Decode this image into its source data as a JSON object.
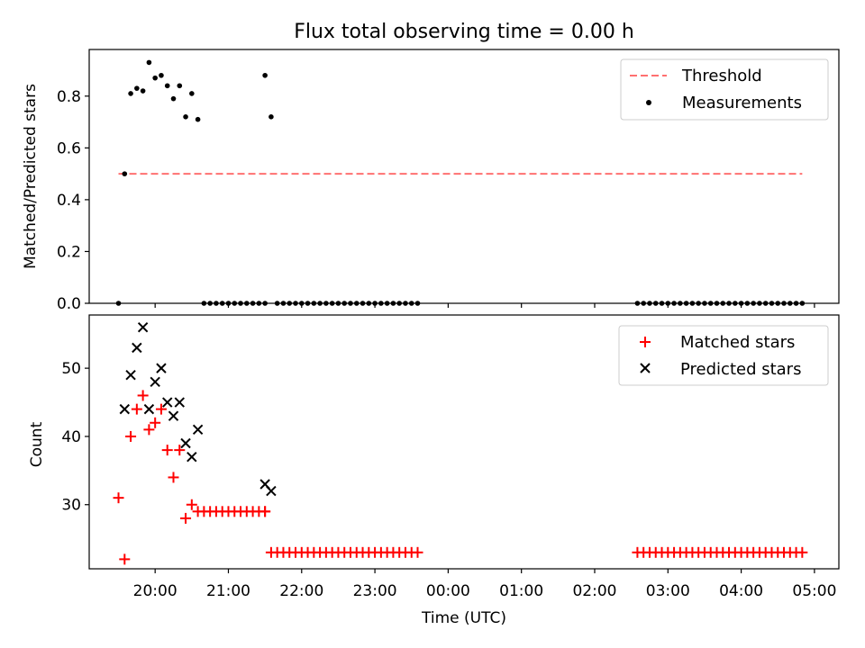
{
  "title": "Flux total observing time = 0.00 h",
  "chart_data": [
    {
      "type": "scatter",
      "ylabel": "Matched/Predicted stars",
      "ylim": [
        0,
        0.98
      ],
      "yticks": [
        "0.0",
        "0.2",
        "0.4",
        "0.6",
        "0.8"
      ],
      "xlim": [
        "19:06",
        "05:20"
      ],
      "legend_position": "upper-right",
      "threshold": {
        "name": "Threshold",
        "value": 0.5,
        "x_start": "19:30",
        "x_end": "04:50",
        "color": "#ff7070"
      },
      "series": [
        {
          "name": "Measurements",
          "color": "#000000",
          "x": [
            "19:30",
            "19:35",
            "19:40",
            "19:45",
            "19:50",
            "19:55",
            "20:00",
            "20:05",
            "20:10",
            "20:15",
            "20:20",
            "20:25",
            "20:30",
            "20:35",
            "21:30",
            "21:35",
            "20:40",
            "20:45",
            "20:50",
            "20:55",
            "21:00",
            "21:05",
            "21:10",
            "21:15",
            "21:20",
            "21:25",
            "21:30",
            "21:40",
            "21:45",
            "21:50",
            "21:55",
            "22:00",
            "22:05",
            "22:10",
            "22:15",
            "22:20",
            "22:25",
            "22:30",
            "22:35",
            "22:40",
            "22:45",
            "22:50",
            "22:55",
            "23:00",
            "23:05",
            "23:10",
            "23:15",
            "23:20",
            "23:25",
            "23:30",
            "23:35",
            "02:35",
            "02:40",
            "02:45",
            "02:50",
            "02:55",
            "03:00",
            "03:05",
            "03:10",
            "03:15",
            "03:20",
            "03:25",
            "03:30",
            "03:35",
            "03:40",
            "03:45",
            "03:50",
            "03:55",
            "04:00",
            "04:05",
            "04:10",
            "04:15",
            "04:20",
            "04:25",
            "04:30",
            "04:35",
            "04:40",
            "04:45",
            "04:50"
          ],
          "y": [
            0.0,
            0.5,
            0.81,
            0.83,
            0.82,
            0.93,
            0.87,
            0.88,
            0.84,
            0.79,
            0.84,
            0.72,
            0.81,
            0.71,
            0.88,
            0.72,
            0,
            0,
            0,
            0,
            0,
            0,
            0,
            0,
            0,
            0,
            0,
            0,
            0,
            0,
            0,
            0,
            0,
            0,
            0,
            0,
            0,
            0,
            0,
            0,
            0,
            0,
            0,
            0,
            0,
            0,
            0,
            0,
            0,
            0,
            0,
            0,
            0,
            0,
            0,
            0,
            0,
            0,
            0,
            0,
            0,
            0,
            0,
            0,
            0,
            0,
            0,
            0,
            0,
            0,
            0,
            0,
            0,
            0,
            0,
            0,
            0,
            0,
            0
          ]
        }
      ]
    },
    {
      "type": "scatter",
      "xlabel": "Time (UTC)",
      "ylabel": "Count",
      "ylim": [
        20.6,
        57.8
      ],
      "yticks": [
        "30",
        "40",
        "50"
      ],
      "xlim": [
        "19:06",
        "05:20"
      ],
      "xticks": [
        "20:00",
        "21:00",
        "22:00",
        "23:00",
        "00:00",
        "01:00",
        "02:00",
        "03:00",
        "04:00",
        "05:00"
      ],
      "legend_position": "upper-right",
      "series": [
        {
          "name": "Matched stars",
          "color": "#ff0000",
          "marker": "plus",
          "x": [
            "19:30",
            "19:35",
            "19:40",
            "19:45",
            "19:50",
            "19:55",
            "20:00",
            "20:05",
            "20:10",
            "20:15",
            "20:20",
            "20:25",
            "20:30",
            "20:35",
            "21:30",
            "21:35",
            "20:40",
            "20:45",
            "20:50",
            "20:55",
            "21:00",
            "21:05",
            "21:10",
            "21:15",
            "21:20",
            "21:25",
            "21:30",
            "21:40",
            "21:45",
            "21:50",
            "21:55",
            "22:00",
            "22:05",
            "22:10",
            "22:15",
            "22:20",
            "22:25",
            "22:30",
            "22:35",
            "22:40",
            "22:45",
            "22:50",
            "22:55",
            "23:00",
            "23:05",
            "23:10",
            "23:15",
            "23:20",
            "23:25",
            "23:30",
            "23:35",
            "02:35",
            "02:40",
            "02:45",
            "02:50",
            "02:55",
            "03:00",
            "03:05",
            "03:10",
            "03:15",
            "03:20",
            "03:25",
            "03:30",
            "03:35",
            "03:40",
            "03:45",
            "03:50",
            "03:55",
            "04:00",
            "04:05",
            "04:10",
            "04:15",
            "04:20",
            "04:25",
            "04:30",
            "04:35",
            "04:40",
            "04:45",
            "04:50"
          ],
          "y": [
            31,
            22,
            40,
            44,
            46,
            41,
            42,
            44,
            38,
            34,
            38,
            28,
            30,
            29,
            29,
            23,
            29,
            29,
            29,
            29,
            29,
            29,
            29,
            29,
            29,
            29,
            29,
            23,
            23,
            23,
            23,
            23,
            23,
            23,
            23,
            23,
            23,
            23,
            23,
            23,
            23,
            23,
            23,
            23,
            23,
            23,
            23,
            23,
            23,
            23,
            23,
            23,
            23,
            23,
            23,
            23,
            23,
            23,
            23,
            23,
            23,
            23,
            23,
            23,
            23,
            23,
            23,
            23,
            23,
            23,
            23,
            23,
            23,
            23,
            23,
            23,
            23,
            23,
            23
          ]
        },
        {
          "name": "Predicted stars",
          "color": "#000000",
          "marker": "x",
          "x": [
            "19:35",
            "19:40",
            "19:45",
            "19:50",
            "19:55",
            "20:00",
            "20:05",
            "20:10",
            "20:15",
            "20:20",
            "20:25",
            "20:30",
            "20:35",
            "21:30",
            "21:35"
          ],
          "y": [
            44,
            49,
            53,
            56,
            44,
            48,
            50,
            45,
            43,
            45,
            39,
            37,
            41,
            33,
            32
          ]
        }
      ]
    }
  ]
}
